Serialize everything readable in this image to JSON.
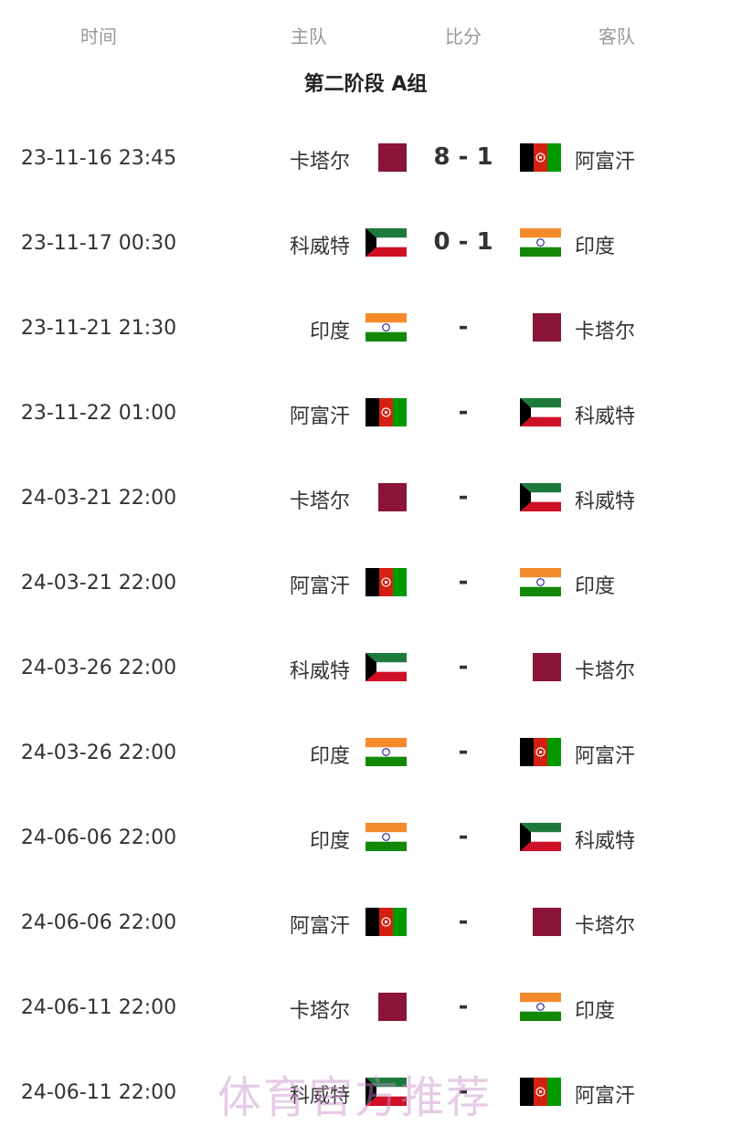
{
  "header": {
    "time": "时间",
    "home": "主队",
    "score": "比分",
    "away": "客队"
  },
  "group_title": "第二阶段 A组",
  "flag_colors": {
    "qatar": "#8a1538",
    "kuwait_green": "#1e7a3c",
    "kuwait_red": "#ce1126",
    "india_saffron": "#f58a2a",
    "india_green": "#138808",
    "india_wheel": "#000080",
    "afghanistan_red": "#d32011",
    "afghanistan_green": "#009a00"
  },
  "matches": [
    {
      "time": "23-11-16 23:45",
      "home": "卡塔尔",
      "home_flag": "qatar",
      "score": "8 - 1",
      "away": "阿富汗",
      "away_flag": "afghanistan"
    },
    {
      "time": "23-11-17 00:30",
      "home": "科威特",
      "home_flag": "kuwait",
      "score": "0 - 1",
      "away": "印度",
      "away_flag": "india"
    },
    {
      "time": "23-11-21 21:30",
      "home": "印度",
      "home_flag": "india",
      "score": "-",
      "away": "卡塔尔",
      "away_flag": "qatar"
    },
    {
      "time": "23-11-22 01:00",
      "home": "阿富汗",
      "home_flag": "afghanistan",
      "score": "-",
      "away": "科威特",
      "away_flag": "kuwait"
    },
    {
      "time": "24-03-21 22:00",
      "home": "卡塔尔",
      "home_flag": "qatar",
      "score": "-",
      "away": "科威特",
      "away_flag": "kuwait"
    },
    {
      "time": "24-03-21 22:00",
      "home": "阿富汗",
      "home_flag": "afghanistan",
      "score": "-",
      "away": "印度",
      "away_flag": "india"
    },
    {
      "time": "24-03-26 22:00",
      "home": "科威特",
      "home_flag": "kuwait",
      "score": "-",
      "away": "卡塔尔",
      "away_flag": "qatar"
    },
    {
      "time": "24-03-26 22:00",
      "home": "印度",
      "home_flag": "india",
      "score": "-",
      "away": "阿富汗",
      "away_flag": "afghanistan"
    },
    {
      "time": "24-06-06 22:00",
      "home": "印度",
      "home_flag": "india",
      "score": "-",
      "away": "科威特",
      "away_flag": "kuwait"
    },
    {
      "time": "24-06-06 22:00",
      "home": "阿富汗",
      "home_flag": "afghanistan",
      "score": "-",
      "away": "卡塔尔",
      "away_flag": "qatar"
    },
    {
      "time": "24-06-11 22:00",
      "home": "卡塔尔",
      "home_flag": "qatar",
      "score": "-",
      "away": "印度",
      "away_flag": "india"
    },
    {
      "time": "24-06-11 22:00",
      "home": "科威特",
      "home_flag": "kuwait",
      "score": "-",
      "away": "阿富汗",
      "away_flag": "afghanistan"
    }
  ],
  "watermark": "体育官方推荐"
}
